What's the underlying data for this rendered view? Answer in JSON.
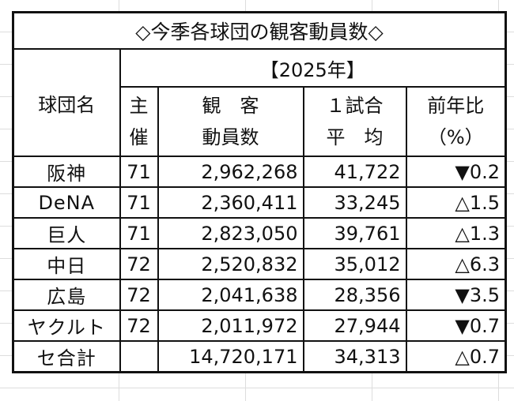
{
  "title": "◇今季各球団の観客動員数◇",
  "year_label": "【2025年】",
  "headers": {
    "team": "球団名",
    "hosted": "主\n催",
    "attendance": "観　客\n動員数",
    "per_game": "１試合\n平　均",
    "yoy": "前年比\n（%）"
  },
  "rows": [
    {
      "team": "阪神",
      "games": "71",
      "attendance": "2,962,268",
      "average": "41,722",
      "yoy": "▼0.2"
    },
    {
      "team": "DeNA",
      "games": "71",
      "attendance": "2,360,411",
      "average": "33,245",
      "yoy": "△1.5"
    },
    {
      "team": "巨人",
      "games": "71",
      "attendance": "2,823,050",
      "average": "39,761",
      "yoy": "△1.3"
    },
    {
      "team": "中日",
      "games": "72",
      "attendance": "2,520,832",
      "average": "35,012",
      "yoy": "△6.3"
    },
    {
      "team": "広島",
      "games": "72",
      "attendance": "2,041,638",
      "average": "28,356",
      "yoy": "▼3.5"
    },
    {
      "team": "ヤクルト",
      "games": "72",
      "attendance": "2,011,972",
      "average": "27,944",
      "yoy": "▼0.7"
    }
  ],
  "total": {
    "team": "セ合計",
    "games": "",
    "attendance": "14,720,171",
    "average": "34,313",
    "yoy": "△0.7"
  }
}
